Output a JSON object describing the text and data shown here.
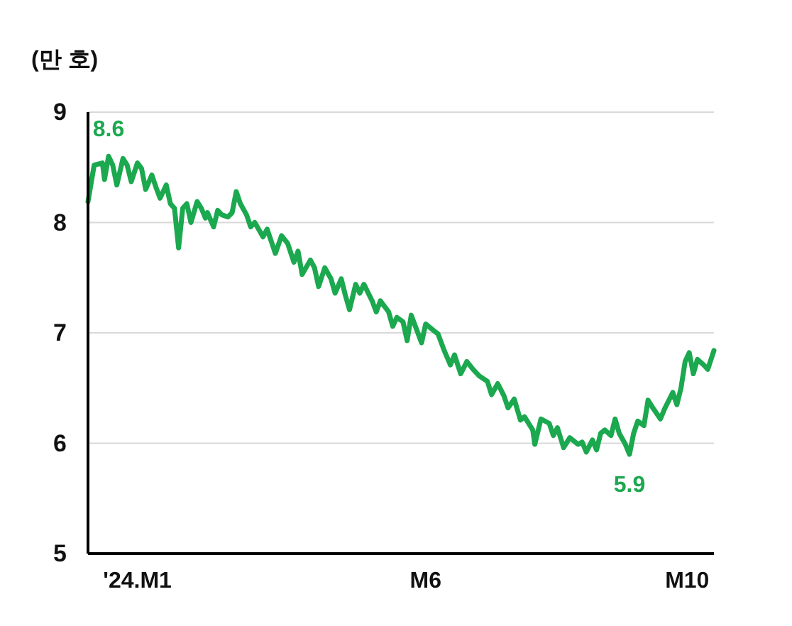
{
  "chart_data": {
    "type": "line",
    "ylabel": "(만 호)",
    "x": [
      "2024-01-01",
      "2024-01-04",
      "2024-01-08",
      "2024-01-09",
      "2024-01-11",
      "2024-01-13",
      "2024-01-15",
      "2024-01-18",
      "2024-01-20",
      "2024-01-22",
      "2024-01-25",
      "2024-01-27",
      "2024-01-29",
      "2024-02-01",
      "2024-02-03",
      "2024-02-05",
      "2024-02-08",
      "2024-02-10",
      "2024-02-12",
      "2024-02-14",
      "2024-02-16",
      "2024-02-18",
      "2024-02-20",
      "2024-02-23",
      "2024-02-25",
      "2024-02-27",
      "2024-02-28",
      "2024-03-02",
      "2024-03-04",
      "2024-03-06",
      "2024-03-09",
      "2024-03-11",
      "2024-03-13",
      "2024-03-15",
      "2024-03-18",
      "2024-03-20",
      "2024-03-22",
      "2024-03-26",
      "2024-03-28",
      "2024-04-01",
      "2024-04-04",
      "2024-04-07",
      "2024-04-10",
      "2024-04-12",
      "2024-04-14",
      "2024-04-18",
      "2024-04-20",
      "2024-04-22",
      "2024-04-25",
      "2024-04-28",
      "2024-04-30",
      "2024-05-03",
      "2024-05-05",
      "2024-05-07",
      "2024-05-10",
      "2024-05-12",
      "2024-05-14",
      "2024-05-18",
      "2024-05-20",
      "2024-05-22",
      "2024-05-26",
      "2024-05-28",
      "2024-05-30",
      "2024-06-02",
      "2024-06-04",
      "2024-06-06",
      "2024-06-08",
      "2024-06-11",
      "2024-06-13",
      "2024-06-17",
      "2024-06-19",
      "2024-06-22",
      "2024-06-25",
      "2024-06-27",
      "2024-06-30",
      "2024-07-03",
      "2024-07-06",
      "2024-07-09",
      "2024-07-13",
      "2024-07-15",
      "2024-07-18",
      "2024-07-21",
      "2024-07-23",
      "2024-07-26",
      "2024-07-29",
      "2024-07-31",
      "2024-08-04",
      "2024-08-05",
      "2024-08-08",
      "2024-08-12",
      "2024-08-14",
      "2024-08-16",
      "2024-08-19",
      "2024-08-22",
      "2024-08-26",
      "2024-08-28",
      "2024-08-30",
      "2024-09-02",
      "2024-09-04",
      "2024-09-06",
      "2024-09-08",
      "2024-09-11",
      "2024-09-13",
      "2024-09-15",
      "2024-09-18",
      "2024-09-20",
      "2024-09-22",
      "2024-09-24",
      "2024-09-27",
      "2024-09-29",
      "2024-10-01",
      "2024-10-05",
      "2024-10-07",
      "2024-10-11",
      "2024-10-13",
      "2024-10-15",
      "2024-10-17",
      "2024-10-19",
      "2024-10-21",
      "2024-10-23",
      "2024-10-26",
      "2024-10-28",
      "2024-10-31"
    ],
    "series": [
      {
        "color": "#1ba84f",
        "values": [
          8.19,
          8.52,
          8.54,
          8.39,
          8.6,
          8.52,
          8.34,
          8.58,
          8.52,
          8.37,
          8.54,
          8.49,
          8.3,
          8.43,
          8.32,
          8.22,
          8.34,
          8.17,
          8.13,
          7.77,
          8.13,
          8.17,
          8.0,
          8.19,
          8.13,
          8.04,
          8.09,
          7.96,
          8.11,
          8.07,
          8.05,
          8.09,
          8.28,
          8.17,
          8.07,
          7.96,
          8.0,
          7.87,
          7.94,
          7.72,
          7.88,
          7.81,
          7.64,
          7.74,
          7.53,
          7.66,
          7.59,
          7.42,
          7.59,
          7.49,
          7.36,
          7.49,
          7.34,
          7.21,
          7.44,
          7.36,
          7.44,
          7.29,
          7.19,
          7.29,
          7.19,
          7.06,
          7.14,
          7.1,
          6.93,
          7.16,
          7.06,
          6.91,
          7.08,
          7.02,
          6.99,
          6.84,
          6.71,
          6.8,
          6.63,
          6.74,
          6.67,
          6.61,
          6.56,
          6.44,
          6.54,
          6.43,
          6.32,
          6.4,
          6.21,
          6.24,
          6.12,
          5.99,
          6.22,
          6.18,
          6.07,
          6.14,
          5.96,
          6.05,
          5.99,
          6.01,
          5.92,
          6.03,
          5.94,
          6.09,
          6.12,
          6.07,
          6.22,
          6.09,
          5.99,
          5.9,
          6.09,
          6.2,
          6.16,
          6.39,
          6.33,
          6.22,
          6.31,
          6.46,
          6.35,
          6.5,
          6.74,
          6.82,
          6.63,
          6.76,
          6.71,
          6.67,
          6.84
        ]
      }
    ],
    "xlim": [
      "2024-01-01",
      "2024-10-31"
    ],
    "xticks": [
      {
        "value": "2024-01-25",
        "label": "'24.M1"
      },
      {
        "value": "2024-06-13",
        "label": "M6"
      },
      {
        "value": "2024-10-18",
        "label": "M10"
      }
    ],
    "ylim": [
      5,
      9
    ],
    "yticks": [
      5,
      6,
      7,
      8,
      9
    ],
    "grid": "y",
    "annotations": [
      {
        "text": "8.6",
        "x": "2024-01-11",
        "y": 8.6
      },
      {
        "text": "5.9",
        "x": "2024-09-20",
        "y": 5.9
      }
    ]
  }
}
